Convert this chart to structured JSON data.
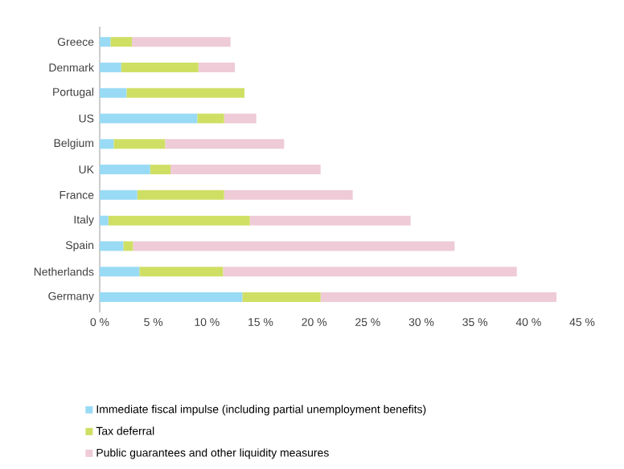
{
  "chart_data": {
    "type": "bar",
    "orientation": "horizontal",
    "stacked": true,
    "categories": [
      "Greece",
      "Denmark",
      "Portugal",
      "US",
      "Belgium",
      "UK",
      "France",
      "Italy",
      "Spain",
      "Netherlands",
      "Germany"
    ],
    "series": [
      {
        "name": "Immediate fiscal impulse (including partial unemployment benefits)",
        "color": "#99daf5",
        "values": [
          1.0,
          2.0,
          2.5,
          9.1,
          1.3,
          4.7,
          3.5,
          0.8,
          2.2,
          3.7,
          13.3
        ]
      },
      {
        "name": "Tax deferral",
        "color": "#cfdf63",
        "values": [
          2.0,
          7.2,
          11.0,
          2.5,
          4.8,
          1.9,
          8.1,
          13.2,
          0.9,
          7.8,
          7.3
        ]
      },
      {
        "name": "Public guarantees and other liquidity measures",
        "color": "#eecbd6",
        "values": [
          9.2,
          3.4,
          0,
          3.0,
          11.1,
          14.0,
          12.0,
          15.0,
          30.0,
          27.4,
          22.0
        ]
      }
    ],
    "xlim": [
      0,
      45
    ],
    "xticks": [
      {
        "value": 0,
        "label": "0 %"
      },
      {
        "value": 5,
        "label": "5 %"
      },
      {
        "value": 10,
        "label": "10 %"
      },
      {
        "value": 15,
        "label": "15 %"
      },
      {
        "value": 20,
        "label": "20 %"
      },
      {
        "value": 25,
        "label": "25 %"
      },
      {
        "value": 30,
        "label": "30 %"
      },
      {
        "value": 35,
        "label": "35 %"
      },
      {
        "value": 40,
        "label": "40 %"
      },
      {
        "value": 45,
        "label": "45 %"
      }
    ],
    "legend": "bottom"
  }
}
